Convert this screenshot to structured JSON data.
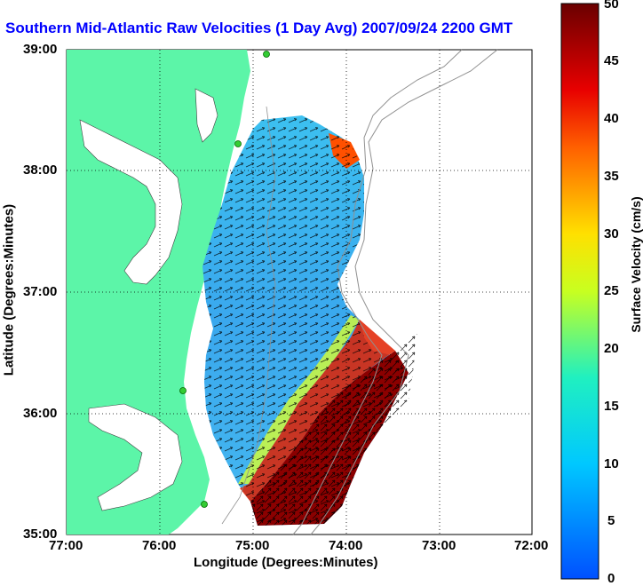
{
  "title": "Southern Mid-Atlantic Raw Velocities (1 Day Avg) 2007/09/24 2200 GMT",
  "x_axis": {
    "label": "Longitude (Degrees:Minutes)",
    "ticks": [
      "77:00",
      "76:00",
      "75:00",
      "74:00",
      "73:00",
      "72:00"
    ]
  },
  "y_axis": {
    "label": "Latitude (Degrees:Minutes)",
    "ticks": [
      "39:00",
      "38:00",
      "37:00",
      "36:00",
      "35:00"
    ]
  },
  "colorbar": {
    "label": "Surface Velocity (cm/s)",
    "ticks": [
      "50",
      "45",
      "40",
      "35",
      "30",
      "25",
      "20",
      "15",
      "10",
      "5",
      "0"
    ],
    "range": [
      0,
      50
    ]
  },
  "colors": {
    "land": "#5cf5a8",
    "title": "#0000ff",
    "station": "#33cc33",
    "high_speed": "#8b0000"
  }
}
